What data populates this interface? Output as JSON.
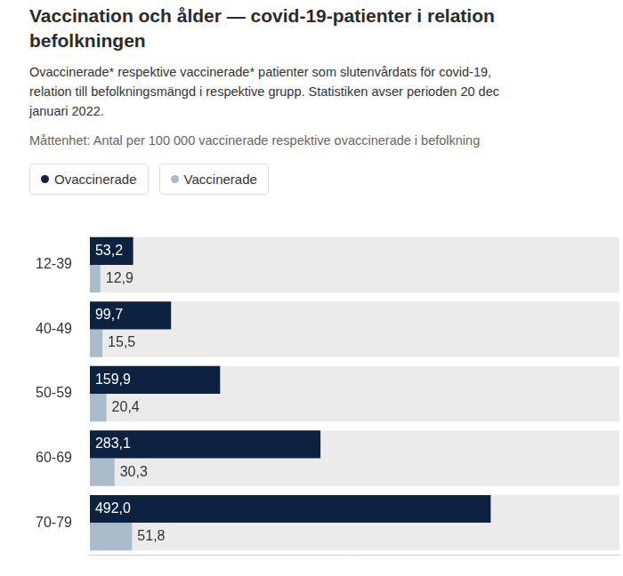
{
  "chart_data": {
    "type": "bar",
    "orientation": "horizontal",
    "title": [
      "Vaccination och ålder — covid-19-patienter i relation",
      "befolkningen"
    ],
    "subtitle": [
      "Ovaccinerade* respektive vaccinerade* patienter som slutenvårdats för covid-19,",
      "relation till befolkningsmängd i respektive grupp. Statistiken avser perioden 20 dec",
      "januari 2022."
    ],
    "annotations": [
      "Måttenhet: Antal per 100 000 vaccinerade respektive ovaccinerade i befolkning"
    ],
    "categories": [
      "12-39",
      "40-49",
      "50-59",
      "60-69",
      "70-79"
    ],
    "series": [
      {
        "name": "Ovaccinerade",
        "color": "#0d2240",
        "values": [
          53.2,
          99.7,
          159.9,
          283.1,
          492.0
        ],
        "value_labels": [
          "53,2",
          "99,7",
          "159,9",
          "283,1",
          "492,0"
        ]
      },
      {
        "name": "Vaccinerade",
        "color": "#a9bcc9",
        "values": [
          12.9,
          15.5,
          20.4,
          30.3,
          51.8
        ],
        "value_labels": [
          "12,9",
          "15,5",
          "20,4",
          "30,3",
          "51,8"
        ]
      }
    ],
    "xlim": [
      0,
      650
    ],
    "xticks": [],
    "grid": false,
    "legend": "top-left",
    "data_labels": true,
    "tick_labels": "y"
  }
}
